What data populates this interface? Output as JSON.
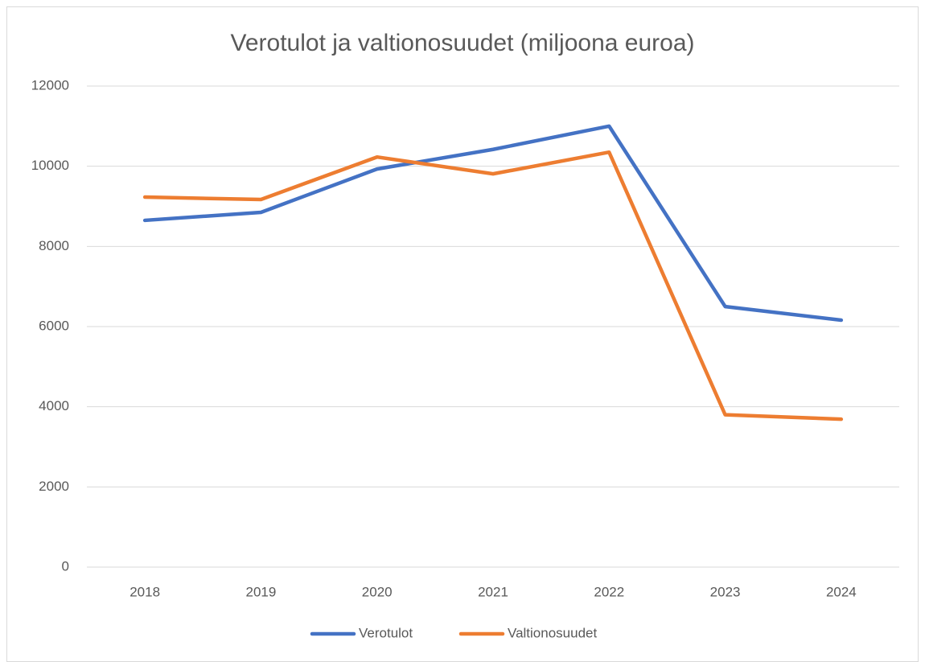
{
  "chart_data": {
    "type": "line",
    "title": "Verotulot ja valtionosuudet (miljoona euroa)",
    "categories": [
      "2018",
      "2019",
      "2020",
      "2021",
      "2022",
      "2023",
      "2024"
    ],
    "series": [
      {
        "name": "Verotulot",
        "color": "#4472c4",
        "values": [
          8650,
          8850,
          9930,
          10420,
          11000,
          6500,
          6160
        ]
      },
      {
        "name": "Valtionosuudet",
        "color": "#ed7d31",
        "values": [
          9230,
          9170,
          10230,
          9810,
          10350,
          3800,
          3690
        ]
      }
    ],
    "ylim": [
      0,
      12000
    ],
    "yticks": [
      0,
      2000,
      4000,
      6000,
      8000,
      10000,
      12000
    ],
    "grid": true,
    "legend": "bottom"
  }
}
